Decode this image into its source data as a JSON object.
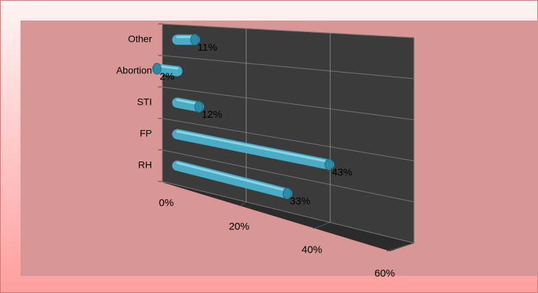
{
  "chart_data": {
    "type": "bar3d",
    "categories": [
      "RH",
      "FP",
      "STI",
      "Abortion",
      "Other"
    ],
    "values": [
      33,
      43,
      12,
      2,
      11
    ],
    "value_labels": [
      "33%",
      "43%",
      "12%",
      "2%",
      "11%"
    ],
    "color": "#4bacc6",
    "xlim": [
      0,
      60
    ],
    "xticks": [
      {
        "value": 0,
        "label": "0%"
      },
      {
        "value": 20,
        "label": "20%"
      },
      {
        "value": 40,
        "label": "40%"
      },
      {
        "value": 60,
        "label": "60%"
      }
    ],
    "grid": true
  }
}
